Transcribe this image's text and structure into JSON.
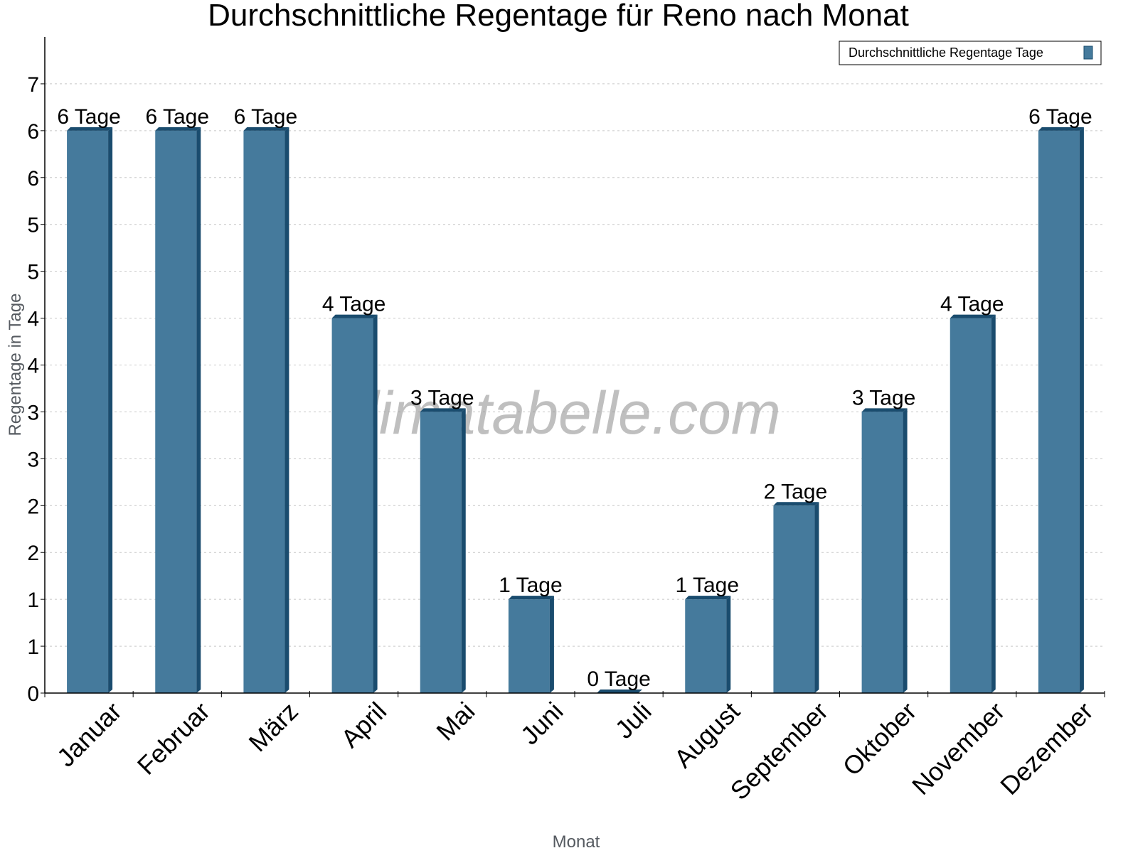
{
  "chart_data": {
    "type": "bar",
    "title": "Durchschnittliche Regentage für Reno nach Monat",
    "xlabel": "Monat",
    "ylabel": "Regentage in Tage",
    "categories": [
      "Januar",
      "Februar",
      "März",
      "April",
      "Mai",
      "Juni",
      "Juli",
      "August",
      "September",
      "Oktober",
      "November",
      "Dezember"
    ],
    "series": [
      {
        "name": "Durchschnittliche Regentage Tage",
        "color": "#457a9c",
        "shade_color": "#1a4c6e",
        "values": [
          6,
          6,
          6,
          4,
          3,
          1,
          0,
          1,
          2,
          3,
          4,
          6
        ],
        "data_labels": [
          "6 Tage",
          "6 Tage",
          "6 Tage",
          "4 Tage",
          "3 Tage",
          "1 Tage",
          "0 Tage",
          "1 Tage",
          "2 Tage",
          "3 Tage",
          "4 Tage",
          "6 Tage"
        ]
      }
    ],
    "ylim": [
      0,
      6.5
    ],
    "ytick_step": 0.5,
    "ytick_labels": [
      "0",
      "1",
      "1",
      "2",
      "2",
      "3",
      "3",
      "4",
      "4",
      "5",
      "5",
      "6",
      "6",
      "7"
    ],
    "grid": true,
    "legend_position": "top-right",
    "watermark": "klimatabelle.com"
  }
}
